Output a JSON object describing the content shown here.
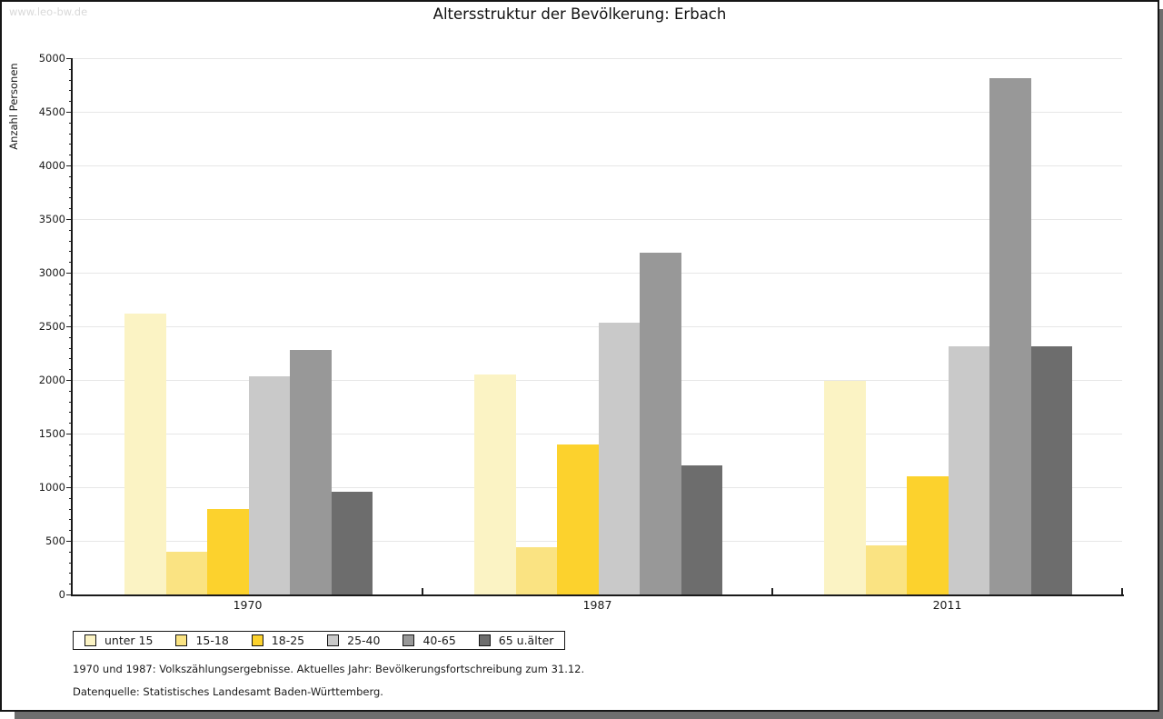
{
  "watermark": "www.leo-bw.de",
  "title": "Altersstruktur der Bevölkerung: Erbach",
  "footnotes": {
    "line1": "1970 und 1987: Volkszählungsergebnisse. Aktuelles Jahr: Bevölkerungsfortschreibung zum 31.12.",
    "line2": "Datenquelle: Statistisches Landesamt Baden-Württemberg."
  },
  "chart_data": {
    "type": "bar",
    "title": "Altersstruktur der Bevölkerung: Erbach",
    "xlabel": "",
    "ylabel": "Anzahl Personen",
    "categories": [
      "1970",
      "1987",
      "2011"
    ],
    "series": [
      {
        "name": "unter 15",
        "color": "#FBF3C4",
        "values": [
          2620,
          2050,
          1990
        ]
      },
      {
        "name": "15-18",
        "color": "#FAE382",
        "values": [
          400,
          440,
          455
        ]
      },
      {
        "name": "18-25",
        "color": "#FCD22D",
        "values": [
          800,
          1400,
          1100
        ]
      },
      {
        "name": "25-40",
        "color": "#C9C9C9",
        "values": [
          2030,
          2530,
          2310
        ]
      },
      {
        "name": "40-65",
        "color": "#989898",
        "values": [
          2280,
          3190,
          4810
        ]
      },
      {
        "name": "65 u.älter",
        "color": "#6D6D6D",
        "values": [
          960,
          1200,
          2310
        ]
      }
    ],
    "ylim": [
      0,
      5000
    ],
    "y_major_step": 500,
    "y_minor_step": 100,
    "grid": true,
    "gridline_color": "#e7e7e7",
    "axis_color": "#1a1a1a",
    "legend_position": "bottom-left"
  }
}
